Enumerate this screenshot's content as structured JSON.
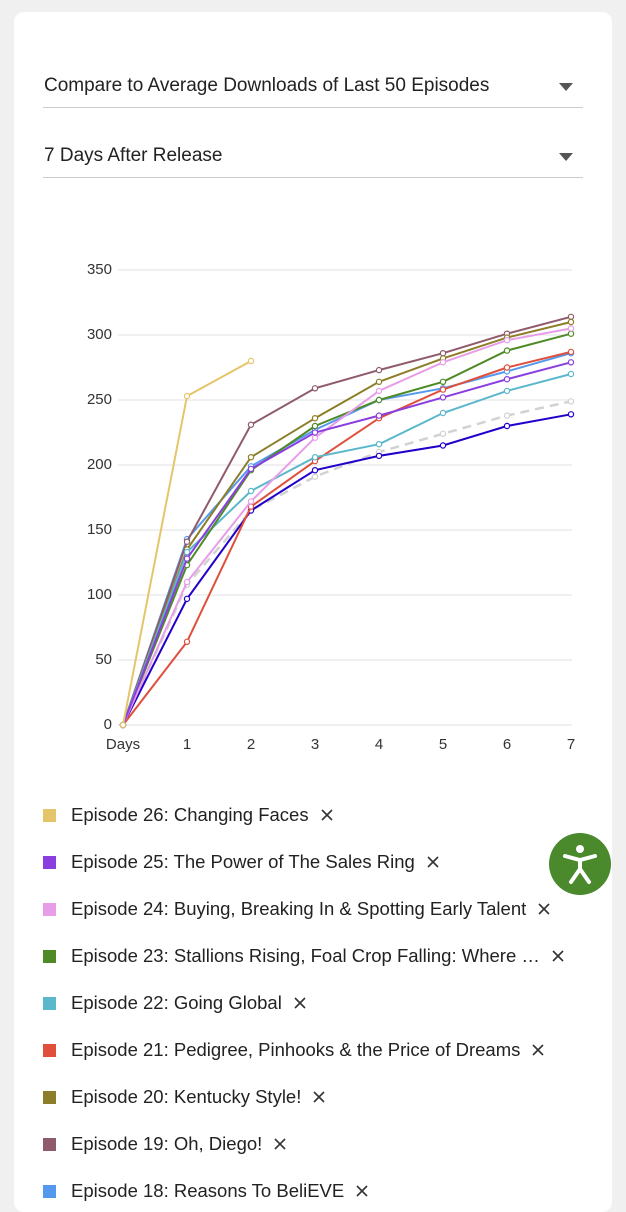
{
  "dropdowns": [
    "Compare to Average Downloads of Last 50 Episodes",
    "7 Days After Release"
  ],
  "chart_data": {
    "type": "line",
    "categories": [
      "Days",
      "1",
      "2",
      "3",
      "4",
      "5",
      "6",
      "7"
    ],
    "ylim": [
      0,
      350
    ],
    "yticks": [
      0,
      50,
      100,
      150,
      200,
      250,
      300,
      350
    ],
    "grid": true,
    "series": [
      {
        "name": "Episode 26: Changing Faces",
        "color": "#e5c56a",
        "values": [
          0,
          253,
          280,
          null,
          null,
          null,
          null,
          null
        ]
      },
      {
        "name": "Episode 25: The Power of The Sales Ring",
        "color": "#8a3ee0",
        "values": [
          0,
          128,
          197,
          225,
          238,
          252,
          266,
          279
        ]
      },
      {
        "name": "Episode 24: Buying, Breaking In & Spotting Early Talent",
        "color": "#e89de8",
        "values": [
          0,
          110,
          172,
          221,
          257,
          279,
          296,
          305
        ]
      },
      {
        "name": "Episode 23: Stallions Rising, Foal Crop Falling: Where …",
        "color": "#4e8a26",
        "values": [
          0,
          123,
          196,
          230,
          250,
          264,
          288,
          301
        ]
      },
      {
        "name": "Episode 22: Going Global",
        "color": "#5bb8cc",
        "values": [
          0,
          133,
          180,
          206,
          216,
          240,
          257,
          270
        ]
      },
      {
        "name": "Episode 21: Pedigree, Pinhooks & the Price of Dreams",
        "color": "#e04f3b",
        "values": [
          0,
          64,
          168,
          203,
          236,
          258,
          275,
          287
        ]
      },
      {
        "name": "Episode 20: Kentucky Style!",
        "color": "#8c7e28",
        "values": [
          0,
          135,
          206,
          236,
          264,
          282,
          298,
          310
        ]
      },
      {
        "name": "Episode 19: Oh, Diego!",
        "color": "#8f5a6a",
        "values": [
          0,
          141,
          231,
          259,
          273,
          286,
          301,
          314
        ]
      },
      {
        "name": "Episode 18: Reasons To BeliEVE",
        "color": "#5599ee",
        "values": [
          0,
          143,
          199,
          227,
          250,
          259,
          272,
          286
        ]
      },
      {
        "color": "#2200cc",
        "values": [
          0,
          97,
          165,
          196,
          207,
          215,
          230,
          239
        ]
      },
      {
        "color": "#d2d2d2",
        "dashed": true,
        "values": [
          0,
          108,
          165,
          191,
          210,
          224,
          238,
          249
        ]
      }
    ]
  }
}
